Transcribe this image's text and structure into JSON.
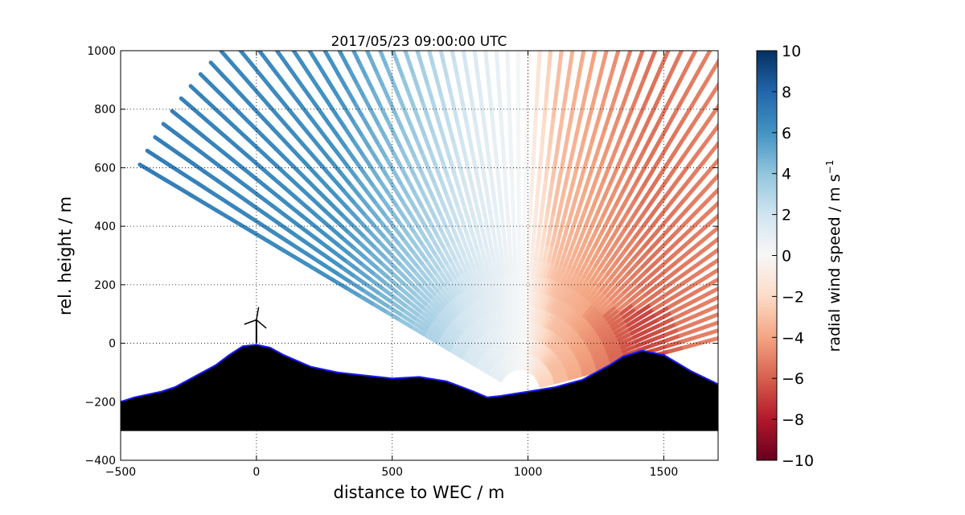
{
  "chart_data": {
    "type": "heatmap",
    "title": "2017/05/23 09:00:00 UTC",
    "xlabel": "distance to WEC / m",
    "ylabel": "rel. height / m",
    "colorbar_label": "radial wind speed / m s",
    "colorbar_label_superscript": "−1",
    "xlim": [
      -500,
      1700
    ],
    "ylim": [
      -400,
      1000
    ],
    "x_ticks": [
      -500,
      0,
      500,
      1000,
      1500
    ],
    "x_tick_labels": [
      "−500",
      "0",
      "500",
      "1000",
      "1500"
    ],
    "y_ticks": [
      -400,
      -200,
      0,
      200,
      400,
      600,
      800,
      1000
    ],
    "y_tick_labels": [
      "−400",
      "−200",
      "0",
      "200",
      "400",
      "600",
      "800",
      "1000"
    ],
    "grid": true,
    "colormap": "RdBu (red = negative, blue = positive)",
    "color_range": [
      -10,
      10
    ],
    "colorbar_ticks": [
      10,
      8,
      6,
      4,
      2,
      0,
      -2,
      -4,
      -6,
      -8,
      -10
    ],
    "colorbar_tick_labels": [
      "10",
      "8",
      "6",
      "4",
      "2",
      "0",
      "−2",
      "−4",
      "−6",
      "−8",
      "−10"
    ],
    "scan": {
      "origin": [
        970,
        -165
      ],
      "start_angle_deg": 151,
      "end_angle_deg": 14,
      "max_range_m": 1600,
      "approx_speed_by_x": [
        {
          "x": -400,
          "v": 7
        },
        {
          "x": 0,
          "v": 6.5
        },
        {
          "x": 300,
          "v": 6
        },
        {
          "x": 600,
          "v": 3.5
        },
        {
          "x": 800,
          "v": 1.5
        },
        {
          "x": 990,
          "v": 0
        },
        {
          "x": 1100,
          "v": -3
        },
        {
          "x": 1300,
          "v": -4.5
        },
        {
          "x": 1450,
          "v": -5.5
        },
        {
          "x": 1700,
          "v": -5
        }
      ]
    },
    "terrain_profile": [
      [
        -500,
        -200
      ],
      [
        -450,
        -185
      ],
      [
        -400,
        -175
      ],
      [
        -350,
        -165
      ],
      [
        -300,
        -150
      ],
      [
        -250,
        -125
      ],
      [
        -200,
        -100
      ],
      [
        -150,
        -75
      ],
      [
        -100,
        -40
      ],
      [
        -50,
        -10
      ],
      [
        0,
        -5
      ],
      [
        50,
        -15
      ],
      [
        100,
        -40
      ],
      [
        150,
        -60
      ],
      [
        200,
        -80
      ],
      [
        300,
        -100
      ],
      [
        400,
        -110
      ],
      [
        500,
        -120
      ],
      [
        600,
        -115
      ],
      [
        700,
        -130
      ],
      [
        800,
        -165
      ],
      [
        850,
        -185
      ],
      [
        900,
        -180
      ],
      [
        1000,
        -165
      ],
      [
        1100,
        -150
      ],
      [
        1200,
        -125
      ],
      [
        1300,
        -75
      ],
      [
        1350,
        -45
      ],
      [
        1420,
        -25
      ],
      [
        1500,
        -40
      ],
      [
        1600,
        -95
      ],
      [
        1700,
        -140
      ]
    ],
    "terrain_floor": -300,
    "wec_position": [
      0,
      0
    ],
    "wec_hub_height_m": 80,
    "colors": {
      "terrain": "#000000",
      "terrain_outline": "#1a1aff",
      "wec": "#000000"
    }
  }
}
